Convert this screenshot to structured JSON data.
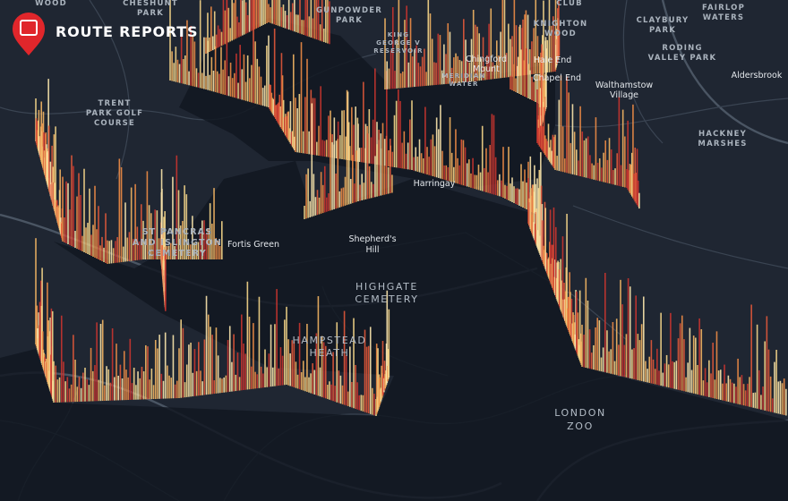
{
  "header": {
    "title": "ROUTE REPORTS"
  },
  "places": [
    {
      "lines": [
        "WOOD"
      ]
    },
    {
      "lines": [
        "CHESHUNT",
        "PARK"
      ]
    },
    {
      "lines": [
        "GUNPOWDER",
        "PARK"
      ]
    },
    {
      "lines": [
        "KING",
        "GEORGE V",
        "RESERVOIR"
      ]
    },
    {
      "lines": [
        "CLUB"
      ]
    },
    {
      "lines": [
        "KNIGHTON",
        "WOOD"
      ]
    },
    {
      "lines": [
        "CLAYBURY",
        "PARK"
      ]
    },
    {
      "lines": [
        "FAIRLOP",
        "WATERS"
      ]
    },
    {
      "lines": [
        "RODING",
        "VALLEY PARK"
      ]
    },
    {
      "lines": [
        "Aldersbrook"
      ]
    },
    {
      "lines": [
        "Chingford",
        "Mount"
      ]
    },
    {
      "lines": [
        "Hale End"
      ]
    },
    {
      "lines": [
        "Chapel End"
      ]
    },
    {
      "lines": [
        "Walthamstow",
        "Village"
      ]
    },
    {
      "lines": [
        "MERIDIAN",
        "WATER"
      ]
    },
    {
      "lines": [
        "HACKNEY",
        "MARSHES"
      ]
    },
    {
      "lines": [
        "TRENT",
        "PARK GOLF",
        "COURSE"
      ]
    },
    {
      "lines": [
        "Harringay"
      ]
    },
    {
      "lines": [
        "Fortis Green"
      ]
    },
    {
      "lines": [
        "Shepherd's",
        "Hill"
      ]
    },
    {
      "lines": [
        "HIGHGATE",
        "CEMETERY"
      ]
    },
    {
      "lines": [
        "HAMPSTEAD",
        "HEATH"
      ]
    },
    {
      "lines": [
        "LONDON",
        "ZOO"
      ]
    },
    {
      "lines": [
        "ST PANCRAS",
        "AND ISLINGTON",
        "CEMETERY"
      ]
    }
  ]
}
